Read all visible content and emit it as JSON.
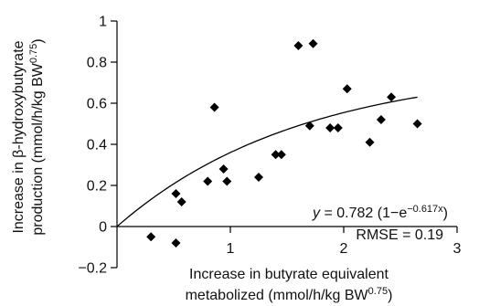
{
  "chart_data": {
    "type": "scatter",
    "title": "",
    "xlabel": {
      "line1": "Increase in butyrate equivalent",
      "line2_text": "metabolized (mmol/h/kg BW",
      "line2_sup": "0.75",
      "line2_end": ")"
    },
    "ylabel": {
      "line1": "Increase in β-hydroxybutyrate",
      "line2_text": "production (mmol/h/kg BW",
      "line2_sup": "0.75",
      "line2_end": ")"
    },
    "xlim": [
      0,
      3
    ],
    "ylim": [
      -0.2,
      1
    ],
    "x_ticks": [
      {
        "value": 1,
        "label": "1"
      },
      {
        "value": 2,
        "label": "2"
      },
      {
        "value": 3,
        "label": "3"
      }
    ],
    "y_ticks": [
      {
        "value": -0.2,
        "label": "−0.2"
      },
      {
        "value": 0,
        "label": "0"
      },
      {
        "value": 0.2,
        "label": "0.2"
      },
      {
        "value": 0.4,
        "label": "0.4"
      },
      {
        "value": 0.6,
        "label": "0.6"
      },
      {
        "value": 0.8,
        "label": "0.8"
      },
      {
        "value": 1,
        "label": "1"
      }
    ],
    "grid": false,
    "marker": "diamond",
    "points": [
      {
        "x": 0.3,
        "y": -0.05
      },
      {
        "x": 0.52,
        "y": -0.08
      },
      {
        "x": 0.52,
        "y": 0.16
      },
      {
        "x": 0.57,
        "y": 0.12
      },
      {
        "x": 0.8,
        "y": 0.22
      },
      {
        "x": 0.86,
        "y": 0.58
      },
      {
        "x": 0.94,
        "y": 0.28
      },
      {
        "x": 0.97,
        "y": 0.22
      },
      {
        "x": 1.25,
        "y": 0.24
      },
      {
        "x": 1.4,
        "y": 0.35
      },
      {
        "x": 1.45,
        "y": 0.35
      },
      {
        "x": 1.6,
        "y": 0.88
      },
      {
        "x": 1.7,
        "y": 0.49
      },
      {
        "x": 1.73,
        "y": 0.89
      },
      {
        "x": 1.88,
        "y": 0.48
      },
      {
        "x": 1.95,
        "y": 0.48
      },
      {
        "x": 2.03,
        "y": 0.67
      },
      {
        "x": 2.23,
        "y": 0.41
      },
      {
        "x": 2.33,
        "y": 0.52
      },
      {
        "x": 2.42,
        "y": 0.63
      },
      {
        "x": 2.65,
        "y": 0.5
      }
    ],
    "fit": {
      "a": 0.782,
      "b": 0.617,
      "x_range": [
        0,
        2.65
      ]
    },
    "annotations": {
      "equation_prefix": "y",
      "equation_mid": " = 0.782 (1−e",
      "equation_sup": "−0.617x",
      "equation_end": ")",
      "rmse": "RMSE = 0.19"
    },
    "colors": {
      "marker": "#000000",
      "line": "#000000",
      "axis": "#000000"
    }
  }
}
